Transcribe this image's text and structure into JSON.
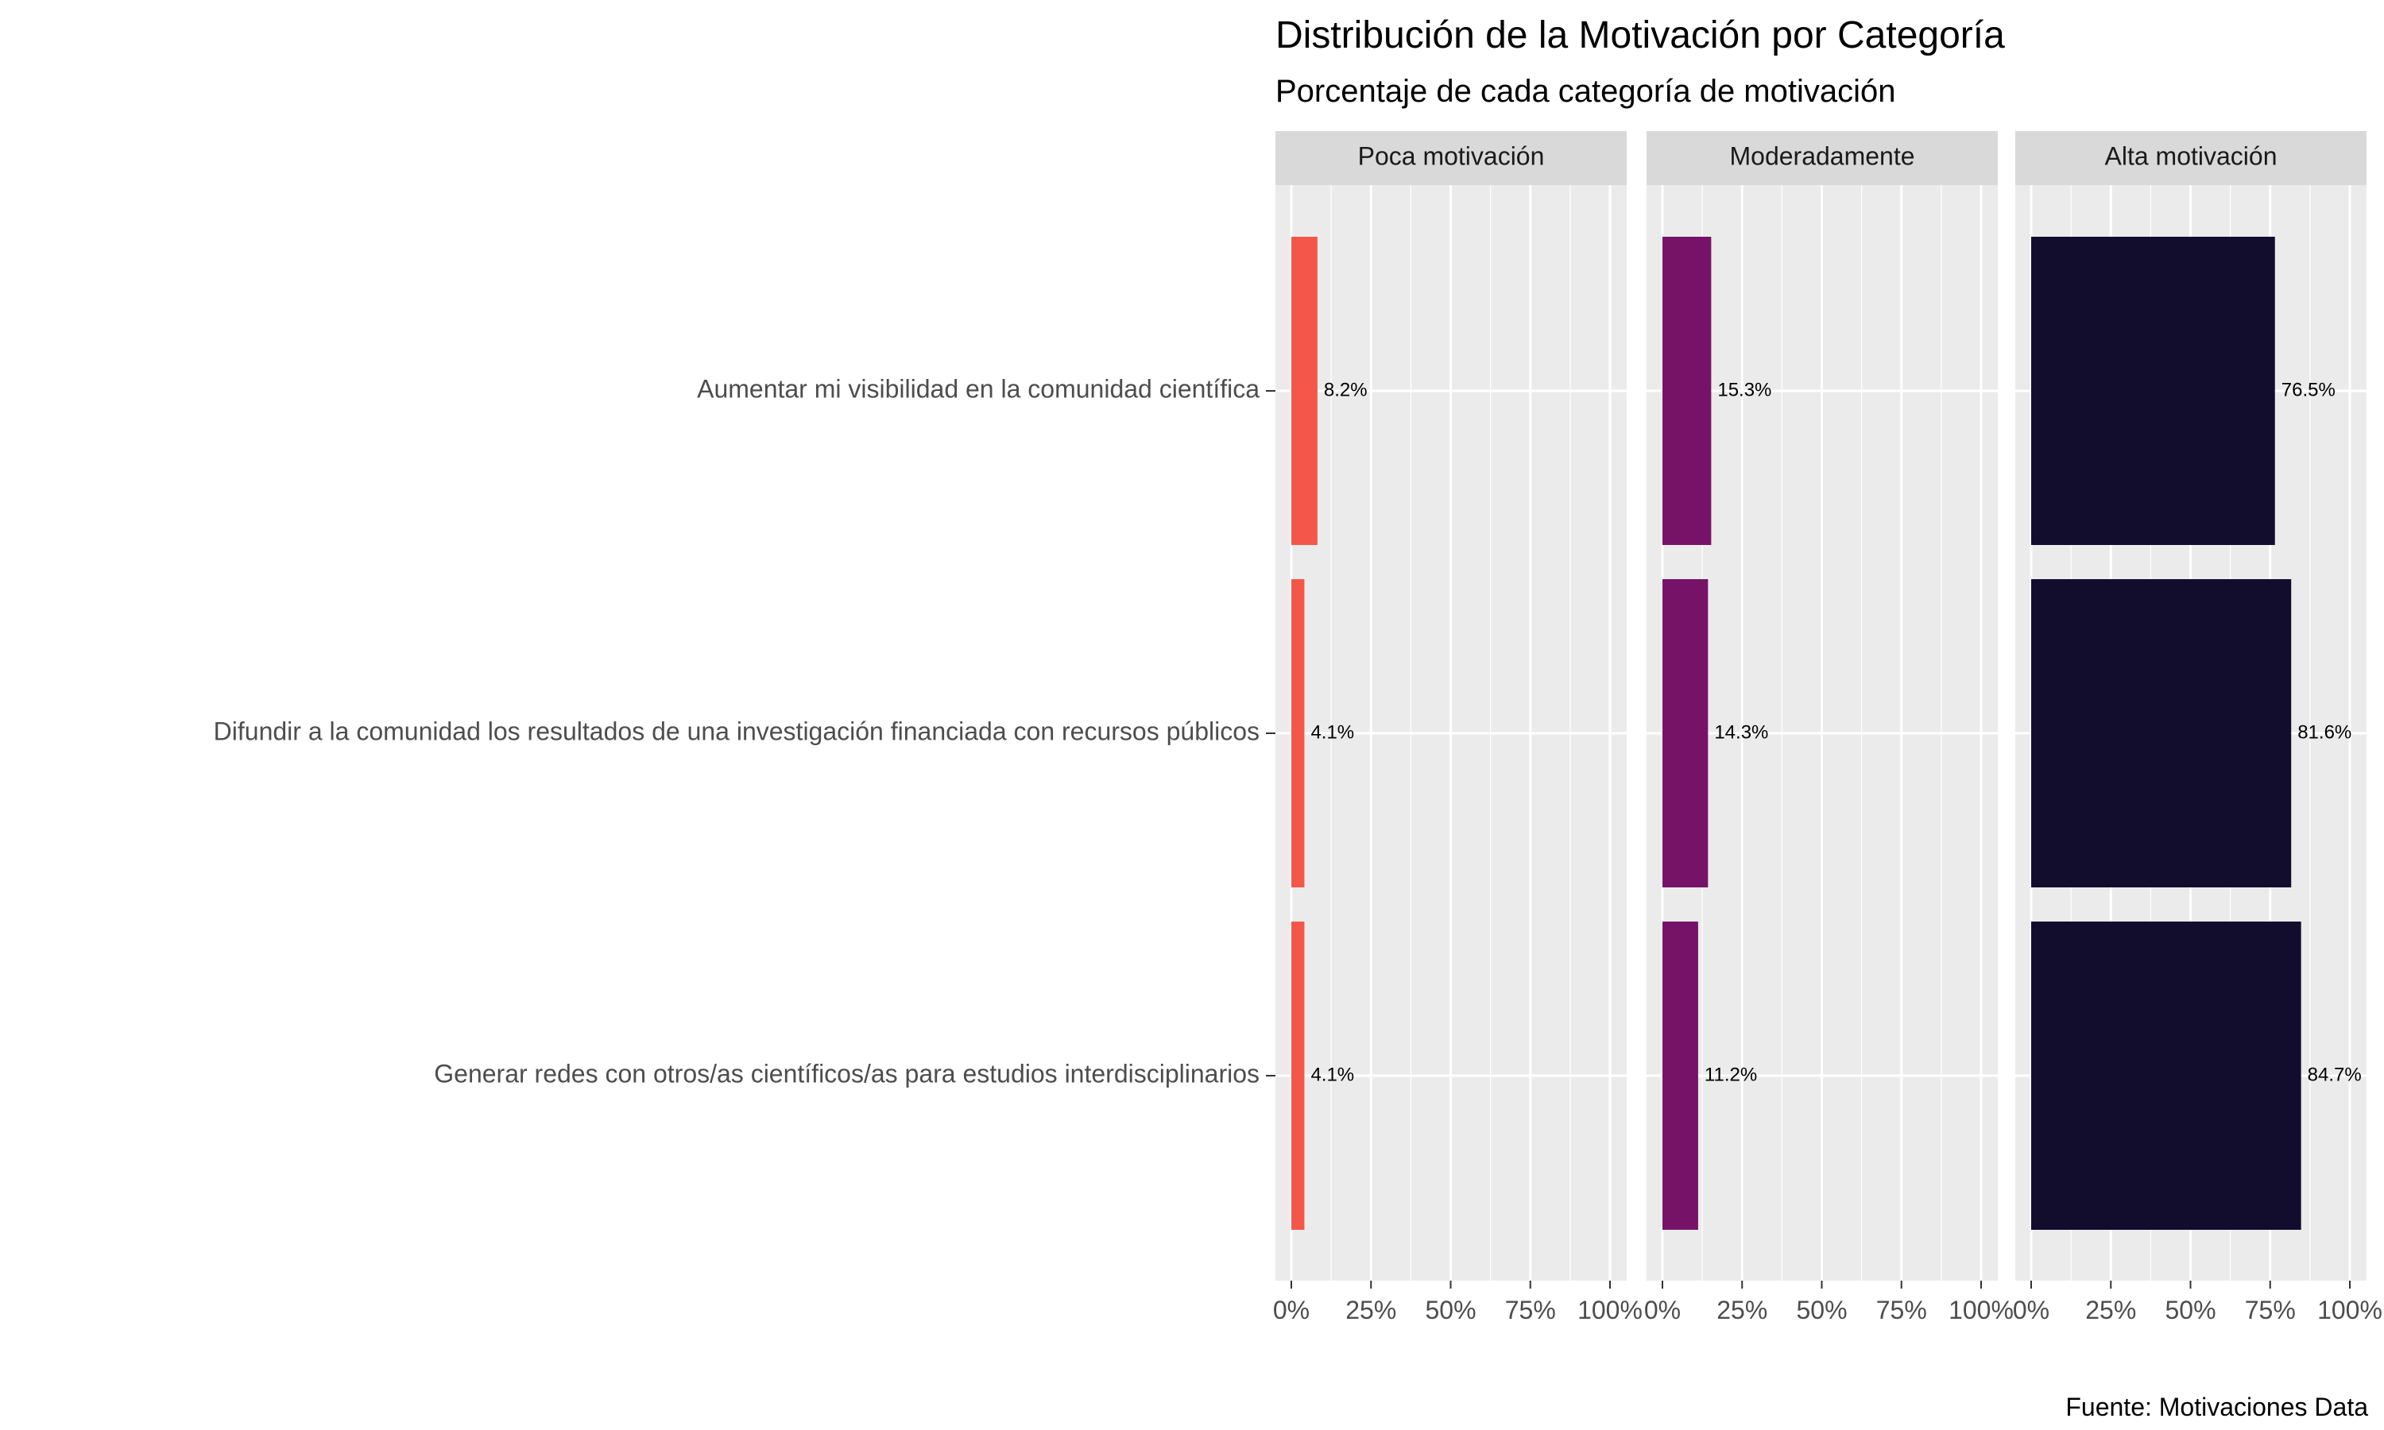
{
  "chart_data": {
    "type": "bar",
    "orientation": "horizontal",
    "title": "Distribución de la Motivación por Categoría",
    "subtitle": "Porcentaje de cada categoría de motivación",
    "caption": "Fuente: Motivaciones Data",
    "categories": [
      "Aumentar mi visibilidad en la comunidad científica",
      "Difundir a la comunidad los resultados de una investigación financiada con recursos públicos",
      "Generar redes con otros/as científicos/as para estudios interdisciplinarios"
    ],
    "xlim": [
      0,
      100
    ],
    "x_ticks": [
      "0%",
      "25%",
      "50%",
      "75%",
      "100%"
    ],
    "grid": true,
    "legend": "none",
    "panels": [
      {
        "name": "Poca motivación",
        "color": "#F4574A",
        "values": [
          8.2,
          4.1,
          4.1
        ],
        "labels": [
          "8.2%",
          "4.1%",
          "4.1%"
        ]
      },
      {
        "name": "Moderadamente",
        "color": "#761368",
        "values": [
          15.3,
          14.3,
          11.2
        ],
        "labels": [
          "15.3%",
          "14.3%",
          "11.2%"
        ]
      },
      {
        "name": "Alta motivación",
        "color": "#120C2D",
        "values": [
          76.5,
          81.6,
          84.7
        ],
        "labels": [
          "76.5%",
          "81.6%",
          "84.7%"
        ]
      }
    ]
  }
}
